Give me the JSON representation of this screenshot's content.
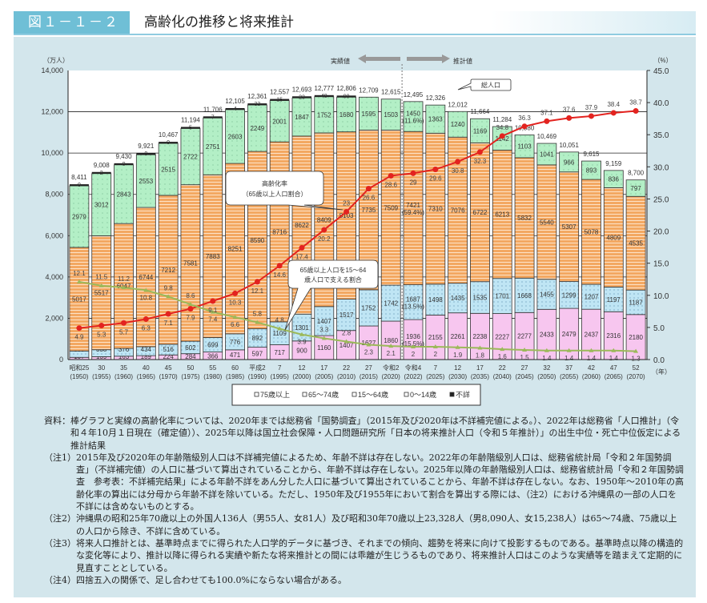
{
  "header": {
    "figure_no": "図１－１－２",
    "title": "高齢化の推移と将来推計"
  },
  "chart_data": {
    "type": "bar",
    "stacked": true,
    "title": "高齢化の推移と将来推計",
    "ylabel_left": "（万人）",
    "ylabel_right": "（%）",
    "xlabel": "（年）",
    "ylim_left": [
      0,
      14000
    ],
    "ylim_right": [
      0,
      45
    ],
    "yticks_left": [
      "0",
      "2,000",
      "4,000",
      "6,000",
      "8,000",
      "10,000",
      "12,000",
      "14,000"
    ],
    "yticks_right": [
      "0.0",
      "5.0",
      "10.0",
      "15.0",
      "20.0",
      "25.0",
      "30.0",
      "35.0",
      "40.0",
      "45.0"
    ],
    "categories": [
      "昭和25",
      "30",
      "35",
      "40",
      "45",
      "50",
      "55",
      "60",
      "平成2",
      "7",
      "12",
      "17",
      "22",
      "27",
      "令和2",
      "令和4",
      "7",
      "12",
      "17",
      "22",
      "27",
      "32",
      "37",
      "42",
      "47",
      "52"
    ],
    "years": [
      "(1950)",
      "(1955)",
      "(1960)",
      "(1965)",
      "(1970)",
      "(1975)",
      "(1980)",
      "(1985)",
      "(1990)",
      "(1995)",
      "(2000)",
      "(2005)",
      "(2010)",
      "(2015)",
      "(2020)",
      "(2022)",
      "(2025)",
      "(2030)",
      "(2035)",
      "(2040)",
      "(2045)",
      "(2050)",
      "(2055)",
      "(2060)",
      "(2065)",
      "(2070)"
    ],
    "totals": [
      "8,411",
      "9,008",
      "9,430",
      "9,921",
      "10,467",
      "11,194",
      "11,706",
      "12,105",
      "12,361",
      "12,557",
      "12,693",
      "12,777",
      "12,806",
      "12,709",
      "12,615",
      "12,495",
      "12,326",
      "12,012",
      "11,664",
      "11,284",
      "10,880",
      "10,469",
      "10,051",
      "9,615",
      "9,159",
      "8,700"
    ],
    "series": [
      {
        "name": "75歳以上",
        "color": "#f7c6ef",
        "values": [
          107,
          139,
          163,
          189,
          224,
          284,
          366,
          471,
          597,
          717,
          900,
          1160,
          1407,
          1627,
          1860,
          1936,
          2155,
          2261,
          2238,
          2227,
          2277,
          2433,
          2479,
          2437,
          2316,
          2180
        ]
      },
      {
        "name": "65～74歳",
        "color": "#bfe5f4",
        "values": [
          309,
          338,
          376,
          434,
          516,
          602,
          699,
          776,
          892,
          1109,
          1301,
          1407,
          1517,
          1752,
          1742,
          1687,
          1498,
          1435,
          1535,
          1701,
          1668,
          1455,
          1299,
          1207,
          1197,
          1187
        ]
      },
      {
        "name": "15～64歳",
        "color": "#f3a862",
        "values": [
          5017,
          5517,
          6047,
          6744,
          7212,
          7581,
          7883,
          8251,
          8590,
          8716,
          8622,
          8409,
          8103,
          7735,
          7509,
          7421,
          7310,
          7076,
          6722,
          6213,
          5832,
          5540,
          5307,
          5078,
          4809,
          4535
        ]
      },
      {
        "name": "0～14歳",
        "color": "#b3efc6",
        "values": [
          2979,
          3012,
          2843,
          2553,
          2515,
          2722,
          2751,
          2603,
          2249,
          2001,
          1847,
          1752,
          1680,
          1595,
          1503,
          1450,
          1363,
          1240,
          1169,
          1142,
          1103,
          1041,
          966,
          893,
          836,
          797
        ]
      },
      {
        "name": "不詳",
        "color": "#222222",
        "values": [
          0,
          2,
          0,
          0,
          0,
          5,
          7,
          4,
          33,
          15,
          23,
          48,
          98,
          null,
          null,
          null,
          null,
          null,
          null,
          null,
          null,
          null,
          null,
          null,
          null,
          null
        ]
      }
    ],
    "share_2022": {
      "0～14歳": "(11.6%)",
      "15～64歳": "(59.4%)",
      "65～74歳": "(13.5%)",
      "75歳以上": "(15.5%)"
    },
    "lines": [
      {
        "name": "高齢化率（65歳以上人口割合）",
        "color": "#e3231f",
        "axis": "right",
        "values": [
          4.9,
          5.3,
          5.7,
          6.3,
          7.1,
          7.9,
          9.1,
          10.3,
          12.1,
          14.6,
          17.4,
          20.2,
          23.0,
          26.6,
          28.6,
          29.0,
          29.6,
          30.8,
          32.3,
          34.8,
          36.3,
          37.1,
          37.6,
          37.9,
          38.4,
          38.7
        ]
      },
      {
        "name": "65歳以上人口を15～64歳人口で支える割合",
        "color": "#9cb95a",
        "axis": "right",
        "values": [
          12.1,
          11.5,
          11.2,
          10.8,
          9.8,
          8.6,
          7.4,
          6.6,
          5.8,
          4.8,
          3.9,
          3.3,
          2.8,
          2.3,
          2.1,
          2.0,
          2.0,
          1.9,
          1.8,
          1.6,
          1.5,
          1.4,
          1.4,
          1.4,
          1.4,
          1.3
        ]
      }
    ],
    "annotations": {
      "actual": "実績値",
      "projection": "推計値",
      "total_label": "総人口",
      "aging_rate_1": "高齢化率",
      "aging_rate_2": "（65歳以上人口割合）",
      "support_1": "65歳以上人口を15～64",
      "support_2": "歳人口で支える割合"
    },
    "legend_placement": "bottom",
    "grid": true
  },
  "notes": [
    {
      "head": "資料：",
      "body": "棒グラフと実線の高齢化率については、2020年までは総務省「国勢調査」（2015年及び2020年は不詳補完値による。）、2022年は総務省「人口推計」（令和４年10月１日現在（確定値））、2025年以降は国立社会保障・人口問題研究所「日本の将来推計人口（令和５年推計）」の出生中位・死亡中位仮定による推計結果"
    },
    {
      "head": "（注1）",
      "body": "2015年及び2020年の年齢階級別人口は不詳補完値によるため、年齢不詳は存在しない。2022年の年齢階級別人口は、総務省統計局「令和２年国勢調査」（不詳補完値）の人口に基づいて算出されていることから、年齢不詳は存在しない。2025年以降の年齢階級別人口は、総務省統計局「令和２年国勢調査　参考表：不詳補完結果」による年齢不詳をあん分した人口に基づいて算出されていることから、年齢不詳は存在しない。なお、1950年～2010年の高齢化率の算出には分母から年齢不詳を除いている。ただし、1950年及び1955年において割合を算出する際には、（注2）における沖縄県の一部の人口を不詳には含めないものとする。"
    },
    {
      "head": "（注2）",
      "body": "沖縄県の昭和25年70歳以上の外国人136人（男55人、女81人）及び昭和30年70歳以上23,328人（男8,090人、女15,238人）は65～74歳、75歳以上の人口から除き、不詳に含めている。"
    },
    {
      "head": "（注3）",
      "body": "将来人口推計とは、基準時点までに得られた人口学的データに基づき、それまでの傾向、趨勢を将来に向けて投影するものである。基準時点以降の構造的な変化等により、推計以降に得られる実績や新たな将来推計との間には乖離が生じうるものであり、将来推計人口はこのような実績等を踏まえて定期的に見直すこととしている。"
    },
    {
      "head": "（注4）",
      "body": "四捨五入の関係で、足し合わせても100.0%にならない場合がある。"
    }
  ]
}
